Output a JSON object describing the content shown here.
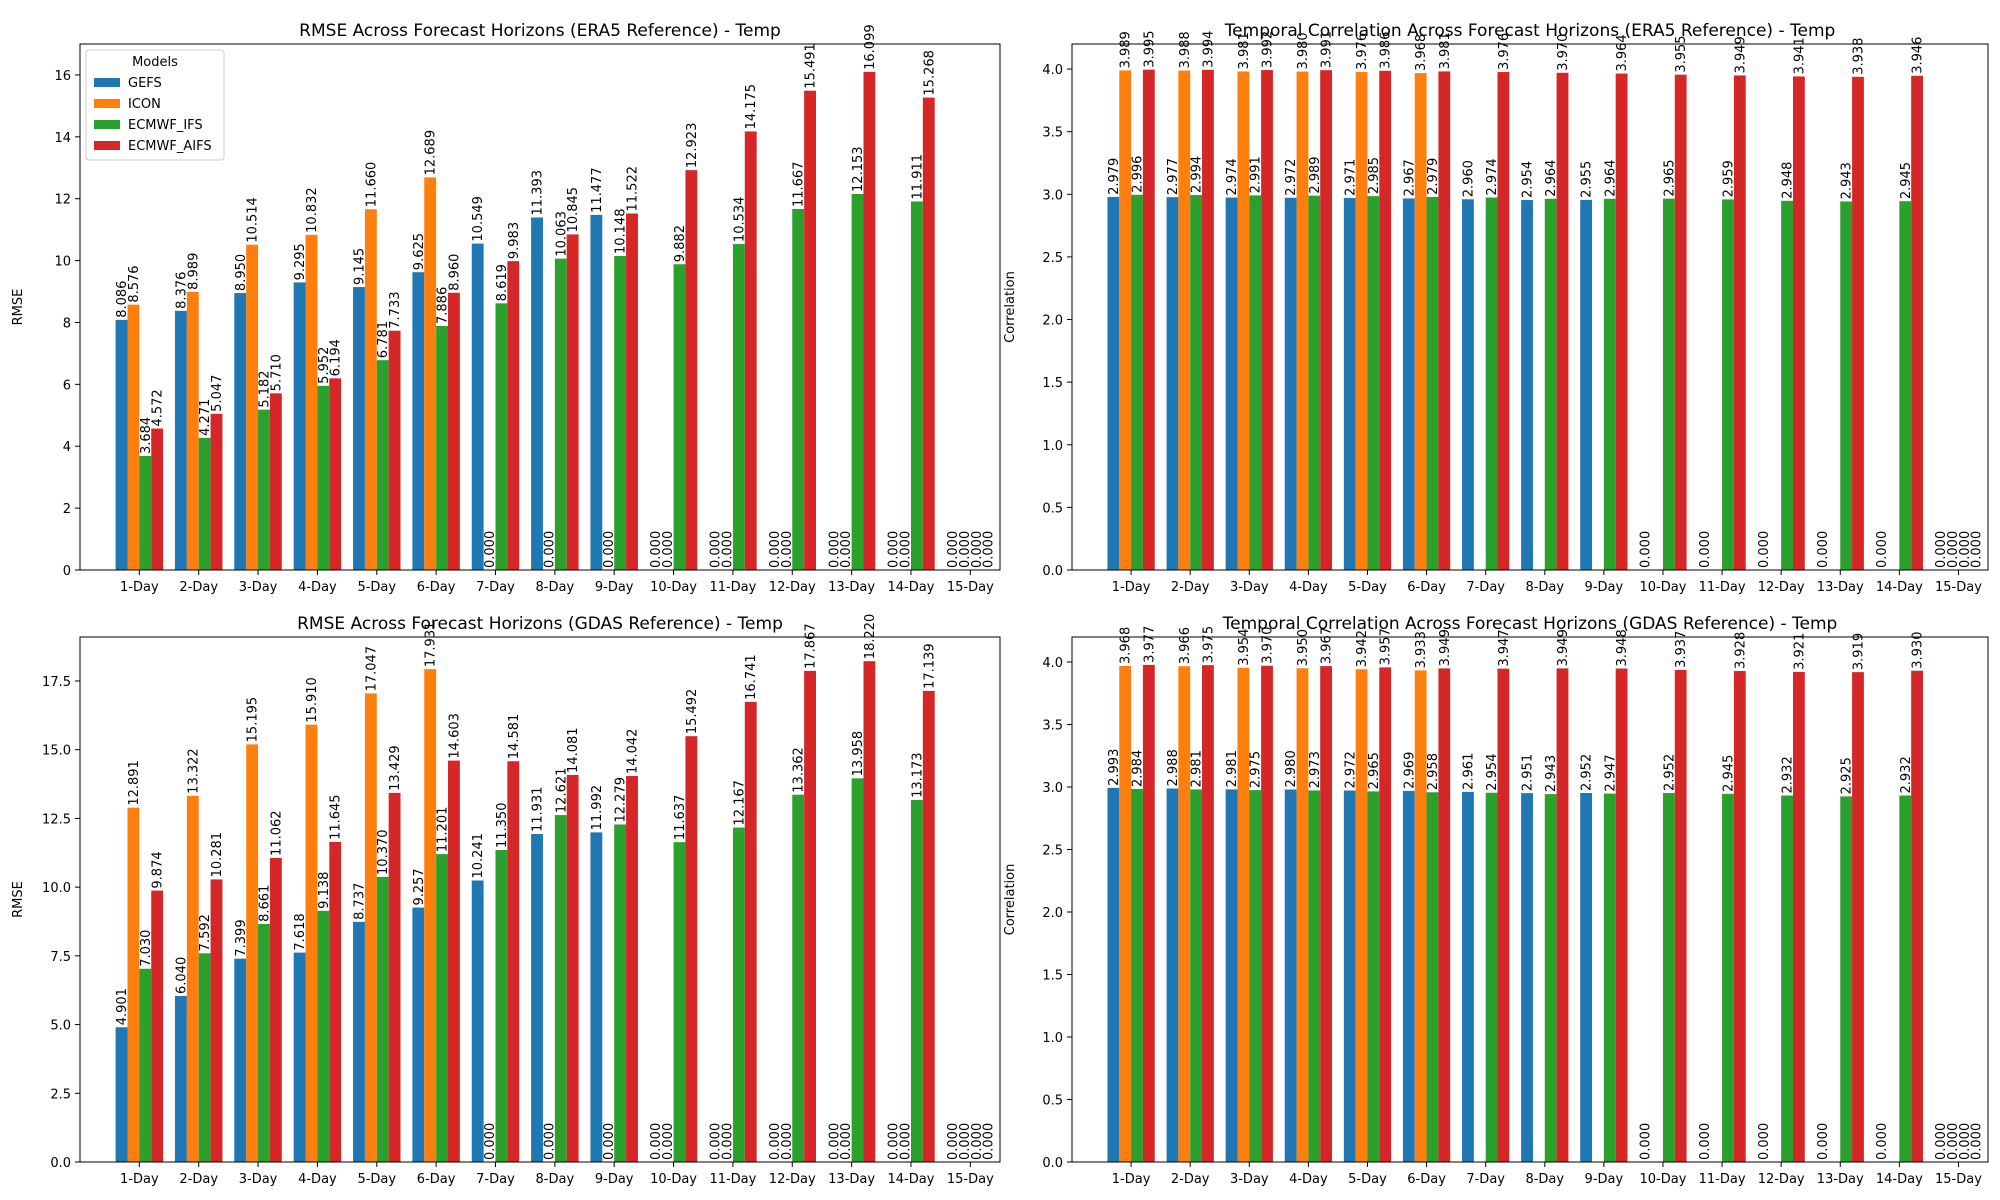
{
  "colors": {
    "GEFS": "#1f77b4",
    "ICON": "#ff7f0e",
    "ECMWF_IFS": "#2ca02c",
    "ECMWF_AIFS": "#d62728"
  },
  "chart_data": [
    {
      "type": "bar",
      "title": "RMSE Across Forecast Horizons (ERA5 Reference) - Temp",
      "xlabel": "",
      "ylabel": "RMSE",
      "ylim": [
        0,
        17
      ],
      "yticks": [
        0,
        2,
        4,
        6,
        8,
        10,
        12,
        14,
        16
      ],
      "legend": {
        "title": "Models",
        "position": "top-left"
      },
      "categories": [
        "1-Day",
        "2-Day",
        "3-Day",
        "4-Day",
        "5-Day",
        "6-Day",
        "7-Day",
        "8-Day",
        "9-Day",
        "10-Day",
        "11-Day",
        "12-Day",
        "13-Day",
        "14-Day",
        "15-Day"
      ],
      "series": [
        {
          "name": "GEFS",
          "values": [
            8.086,
            8.376,
            8.95,
            9.295,
            9.145,
            9.625,
            10.549,
            11.393,
            11.477,
            0.0,
            0.0,
            0.0,
            0.0,
            0.0,
            0.0
          ]
        },
        {
          "name": "ICON",
          "values": [
            8.576,
            8.989,
            10.514,
            10.832,
            11.66,
            12.689,
            0.0,
            0.0,
            0.0,
            0.0,
            0.0,
            0.0,
            0.0,
            0.0,
            0.0
          ]
        },
        {
          "name": "ECMWF_IFS",
          "values": [
            3.684,
            4.271,
            5.182,
            5.952,
            6.781,
            7.886,
            8.619,
            10.063,
            10.148,
            9.882,
            10.534,
            11.667,
            12.153,
            11.911,
            0.0
          ]
        },
        {
          "name": "ECMWF_AIFS",
          "values": [
            4.572,
            5.047,
            5.71,
            6.194,
            7.733,
            8.96,
            9.983,
            10.845,
            11.522,
            12.923,
            14.175,
            15.491,
            16.099,
            15.268,
            0.0
          ]
        }
      ]
    },
    {
      "type": "bar",
      "title": "Temporal Correlation Across Forecast Horizons (ERA5 Reference) - Temp",
      "xlabel": "",
      "ylabel": "Correlation",
      "ylim": [
        0,
        4.2
      ],
      "yticks": [
        0.0,
        0.5,
        1.0,
        1.5,
        2.0,
        2.5,
        3.0,
        3.5,
        4.0
      ],
      "categories": [
        "1-Day",
        "2-Day",
        "3-Day",
        "4-Day",
        "5-Day",
        "6-Day",
        "7-Day",
        "8-Day",
        "9-Day",
        "10-Day",
        "11-Day",
        "12-Day",
        "13-Day",
        "14-Day",
        "15-Day"
      ],
      "series": [
        {
          "name": "GEFS",
          "values": [
            2.979,
            2.977,
            2.974,
            2.972,
            2.971,
            2.967,
            2.96,
            2.954,
            2.955,
            0.0,
            0.0,
            0.0,
            0.0,
            0.0,
            0.0
          ]
        },
        {
          "name": "ICON",
          "values": [
            3.989,
            3.988,
            3.981,
            3.98,
            3.976,
            3.968,
            null,
            null,
            null,
            null,
            null,
            null,
            null,
            null,
            0.0
          ]
        },
        {
          "name": "ECMWF_IFS",
          "values": [
            2.996,
            2.994,
            2.991,
            2.989,
            2.985,
            2.979,
            2.974,
            2.964,
            2.964,
            2.965,
            2.959,
            2.948,
            2.943,
            2.945,
            0.0
          ]
        },
        {
          "name": "ECMWF_AIFS",
          "values": [
            3.995,
            3.994,
            3.992,
            3.991,
            3.986,
            3.981,
            3.976,
            3.97,
            3.964,
            3.955,
            3.949,
            3.941,
            3.938,
            3.946,
            0.0
          ]
        }
      ]
    },
    {
      "type": "bar",
      "title": "RMSE Across Forecast Horizons (GDAS Reference) - Temp",
      "xlabel": "",
      "ylabel": "RMSE",
      "ylim": [
        0,
        19.1
      ],
      "yticks": [
        0.0,
        2.5,
        5.0,
        7.5,
        10.0,
        12.5,
        15.0,
        17.5
      ],
      "categories": [
        "1-Day",
        "2-Day",
        "3-Day",
        "4-Day",
        "5-Day",
        "6-Day",
        "7-Day",
        "8-Day",
        "9-Day",
        "10-Day",
        "11-Day",
        "12-Day",
        "13-Day",
        "14-Day",
        "15-Day"
      ],
      "series": [
        {
          "name": "GEFS",
          "values": [
            4.901,
            6.04,
            7.399,
            7.618,
            8.737,
            9.257,
            10.241,
            11.931,
            11.992,
            0.0,
            0.0,
            0.0,
            0.0,
            0.0,
            0.0
          ]
        },
        {
          "name": "ICON",
          "values": [
            12.891,
            13.322,
            15.195,
            15.91,
            17.047,
            17.931,
            0.0,
            0.0,
            0.0,
            0.0,
            0.0,
            0.0,
            0.0,
            0.0,
            0.0
          ]
        },
        {
          "name": "ECMWF_IFS",
          "values": [
            7.03,
            7.592,
            8.661,
            9.138,
            10.37,
            11.201,
            11.35,
            12.621,
            12.279,
            11.637,
            12.167,
            13.362,
            13.958,
            13.173,
            0.0
          ]
        },
        {
          "name": "ECMWF_AIFS",
          "values": [
            9.874,
            10.281,
            11.062,
            11.645,
            13.429,
            14.603,
            14.581,
            14.081,
            14.042,
            15.492,
            16.741,
            17.867,
            18.22,
            17.139,
            0.0
          ]
        }
      ]
    },
    {
      "type": "bar",
      "title": "Temporal Correlation Across Forecast Horizons (GDAS Reference) - Temp",
      "xlabel": "",
      "ylabel": "Correlation",
      "ylim": [
        0,
        4.2
      ],
      "yticks": [
        0.0,
        0.5,
        1.0,
        1.5,
        2.0,
        2.5,
        3.0,
        3.5,
        4.0
      ],
      "categories": [
        "1-Day",
        "2-Day",
        "3-Day",
        "4-Day",
        "5-Day",
        "6-Day",
        "7-Day",
        "8-Day",
        "9-Day",
        "10-Day",
        "11-Day",
        "12-Day",
        "13-Day",
        "14-Day",
        "15-Day"
      ],
      "series": [
        {
          "name": "GEFS",
          "values": [
            2.993,
            2.988,
            2.981,
            2.98,
            2.972,
            2.969,
            2.961,
            2.951,
            2.952,
            0.0,
            0.0,
            0.0,
            0.0,
            0.0,
            0.0
          ]
        },
        {
          "name": "ICON",
          "values": [
            3.968,
            3.966,
            3.954,
            3.95,
            3.942,
            3.933,
            null,
            null,
            null,
            null,
            null,
            null,
            null,
            null,
            0.0
          ]
        },
        {
          "name": "ECMWF_IFS",
          "values": [
            2.984,
            2.981,
            2.975,
            2.973,
            2.965,
            2.958,
            2.954,
            2.943,
            2.947,
            2.952,
            2.945,
            2.932,
            2.925,
            2.932,
            0.0
          ]
        },
        {
          "name": "ECMWF_AIFS",
          "values": [
            3.977,
            3.975,
            3.97,
            3.967,
            3.957,
            3.949,
            3.947,
            3.949,
            3.948,
            3.937,
            3.928,
            3.921,
            3.919,
            3.93,
            0.0
          ]
        }
      ]
    }
  ]
}
